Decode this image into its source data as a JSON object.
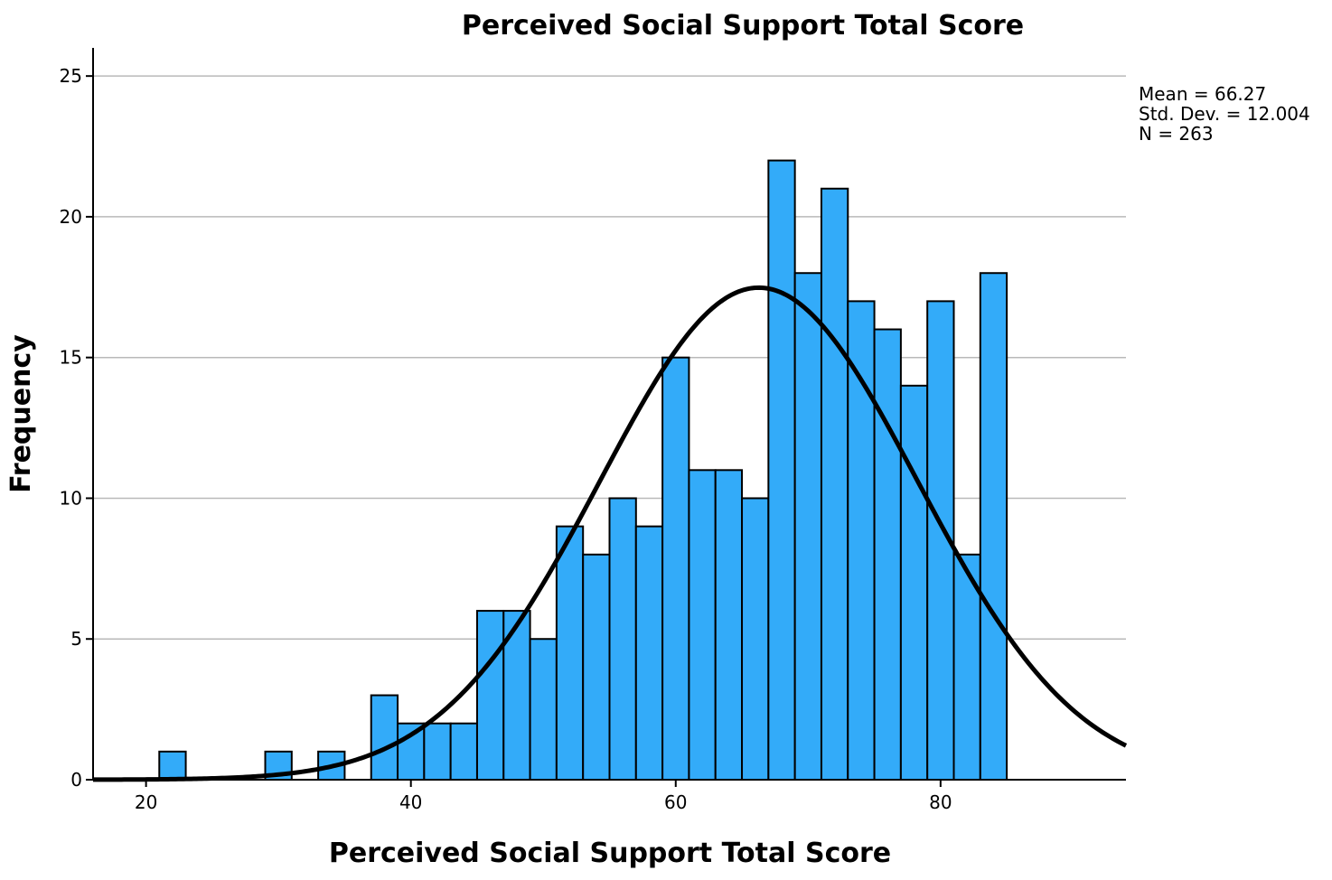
{
  "chart_data": {
    "type": "bar",
    "title": "Perceived Social Support Total Score",
    "xlabel": "Perceived Social Support Total Score",
    "ylabel": "Frequency",
    "xlim": [
      16,
      94
    ],
    "ylim": [
      0,
      26
    ],
    "bin_width": 2,
    "x_ticks": [
      20,
      40,
      60,
      80
    ],
    "y_ticks": [
      0,
      5,
      10,
      15,
      20,
      25
    ],
    "grid": "horizontal",
    "bins": [
      {
        "start": 21,
        "end": 23,
        "count": 1
      },
      {
        "start": 29,
        "end": 31,
        "count": 1
      },
      {
        "start": 33,
        "end": 35,
        "count": 1
      },
      {
        "start": 37,
        "end": 39,
        "count": 3
      },
      {
        "start": 39,
        "end": 41,
        "count": 2
      },
      {
        "start": 41,
        "end": 43,
        "count": 2
      },
      {
        "start": 43,
        "end": 45,
        "count": 2
      },
      {
        "start": 45,
        "end": 47,
        "count": 6
      },
      {
        "start": 47,
        "end": 49,
        "count": 6
      },
      {
        "start": 49,
        "end": 51,
        "count": 5
      },
      {
        "start": 51,
        "end": 53,
        "count": 9
      },
      {
        "start": 53,
        "end": 55,
        "count": 8
      },
      {
        "start": 55,
        "end": 57,
        "count": 10
      },
      {
        "start": 57,
        "end": 59,
        "count": 9
      },
      {
        "start": 59,
        "end": 61,
        "count": 15
      },
      {
        "start": 61,
        "end": 63,
        "count": 11
      },
      {
        "start": 63,
        "end": 65,
        "count": 11
      },
      {
        "start": 65,
        "end": 67,
        "count": 10
      },
      {
        "start": 67,
        "end": 69,
        "count": 22
      },
      {
        "start": 69,
        "end": 71,
        "count": 18
      },
      {
        "start": 71,
        "end": 73,
        "count": 21
      },
      {
        "start": 73,
        "end": 75,
        "count": 17
      },
      {
        "start": 75,
        "end": 77,
        "count": 16
      },
      {
        "start": 77,
        "end": 79,
        "count": 14
      },
      {
        "start": 79,
        "end": 81,
        "count": 17
      },
      {
        "start": 81,
        "end": 83,
        "count": 8
      },
      {
        "start": 83,
        "end": 85,
        "count": 18
      }
    ],
    "normal_curve": {
      "mean": 66.27,
      "sd": 12.004,
      "n": 263
    },
    "stats_text": [
      "Mean = 66.27",
      "Std. Dev. = 12.004",
      "N = 263"
    ],
    "colors": {
      "bar": "#33abf9",
      "bar_stroke": "#000000",
      "curve": "#000000",
      "grid": "#b9b9b9"
    }
  }
}
